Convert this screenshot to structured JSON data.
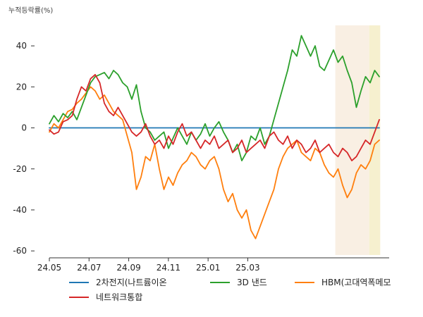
{
  "chart_data": {
    "type": "line",
    "title": "",
    "ylabel": "누적등락률(%)",
    "xlabel": "",
    "x_start": "2024-05",
    "x_ticks": [
      "24.05",
      "24.07",
      "24.09",
      "24.11",
      "25.01",
      "25.03"
    ],
    "ylim": [
      -62,
      50
    ],
    "y_ticks": [
      40,
      20,
      0,
      -20,
      -40,
      -60
    ],
    "grid": false,
    "legend_position": "bottom",
    "highlight_bands": [
      {
        "from_week": 62.4,
        "to_week": 69.8,
        "color": "#f9efe3"
      },
      {
        "from_week": 69.8,
        "to_week": 72.2,
        "color": "#f6f0cf"
      }
    ],
    "series": [
      {
        "name": "2차전지(나트륨이온",
        "color": "#1f77b4",
        "values": [
          0,
          0,
          0,
          0,
          0,
          0,
          0,
          0,
          0,
          0,
          0,
          0,
          0,
          0,
          0,
          0,
          0,
          0,
          0,
          0,
          0,
          0,
          0,
          0,
          0,
          0,
          0,
          0,
          0,
          0,
          0,
          0,
          0,
          0,
          0,
          0,
          0,
          0,
          0,
          0,
          0,
          0,
          0,
          0,
          0,
          0,
          0,
          0,
          0,
          0,
          0,
          0,
          0,
          0,
          0,
          0,
          0,
          0,
          0,
          0,
          0,
          0,
          0,
          0,
          0,
          0,
          0,
          0,
          0,
          0,
          0,
          0,
          0
        ]
      },
      {
        "name": "3D 낸드",
        "color": "#2ca02c",
        "values": [
          2,
          6,
          3,
          7,
          5,
          8,
          4,
          10,
          16,
          22,
          25,
          26,
          27,
          24,
          28,
          26,
          22,
          20,
          14,
          21,
          8,
          0,
          -2,
          -6,
          -4,
          -2,
          -10,
          -5,
          0,
          -4,
          -8,
          -2,
          -6,
          -3,
          2,
          -4,
          0,
          3,
          -2,
          -6,
          -12,
          -8,
          -16,
          -12,
          -4,
          -6,
          0,
          -8,
          -4,
          4,
          12,
          20,
          28,
          38,
          35,
          45,
          40,
          35,
          40,
          30,
          28,
          33,
          38,
          32,
          35,
          28,
          22,
          10,
          18,
          25,
          22,
          28,
          25
        ]
      },
      {
        "name": "HBM(고대역폭메모",
        "color": "#ff7f0e",
        "values": [
          -2,
          2,
          0,
          4,
          8,
          9,
          12,
          14,
          17,
          20,
          18,
          14,
          16,
          12,
          8,
          6,
          4,
          -4,
          -12,
          -30,
          -24,
          -14,
          -16,
          -8,
          -20,
          -30,
          -24,
          -28,
          -22,
          -18,
          -16,
          -12,
          -14,
          -18,
          -20,
          -16,
          -14,
          -20,
          -30,
          -36,
          -32,
          -40,
          -44,
          -40,
          -50,
          -54,
          -48,
          -42,
          -36,
          -30,
          -20,
          -14,
          -10,
          -8,
          -6,
          -12,
          -14,
          -16,
          -10,
          -12,
          -18,
          -22,
          -24,
          -20,
          -28,
          -34,
          -30,
          -22,
          -18,
          -20,
          -16,
          -8,
          -6
        ]
      },
      {
        "name": "네트워크통합",
        "color": "#d62728",
        "values": [
          -1,
          -3,
          -2,
          3,
          4,
          6,
          14,
          20,
          18,
          24,
          26,
          22,
          12,
          8,
          6,
          10,
          6,
          2,
          -2,
          -4,
          -2,
          2,
          -4,
          -8,
          -6,
          -10,
          -4,
          -8,
          -2,
          2,
          -4,
          -2,
          -6,
          -10,
          -6,
          -8,
          -4,
          -10,
          -8,
          -6,
          -12,
          -10,
          -6,
          -12,
          -10,
          -8,
          -6,
          -10,
          -4,
          -2,
          -6,
          -8,
          -4,
          -10,
          -6,
          -8,
          -12,
          -10,
          -6,
          -12,
          -10,
          -8,
          -12,
          -14,
          -10,
          -12,
          -16,
          -14,
          -10,
          -6,
          -8,
          -2,
          4
        ]
      }
    ]
  }
}
